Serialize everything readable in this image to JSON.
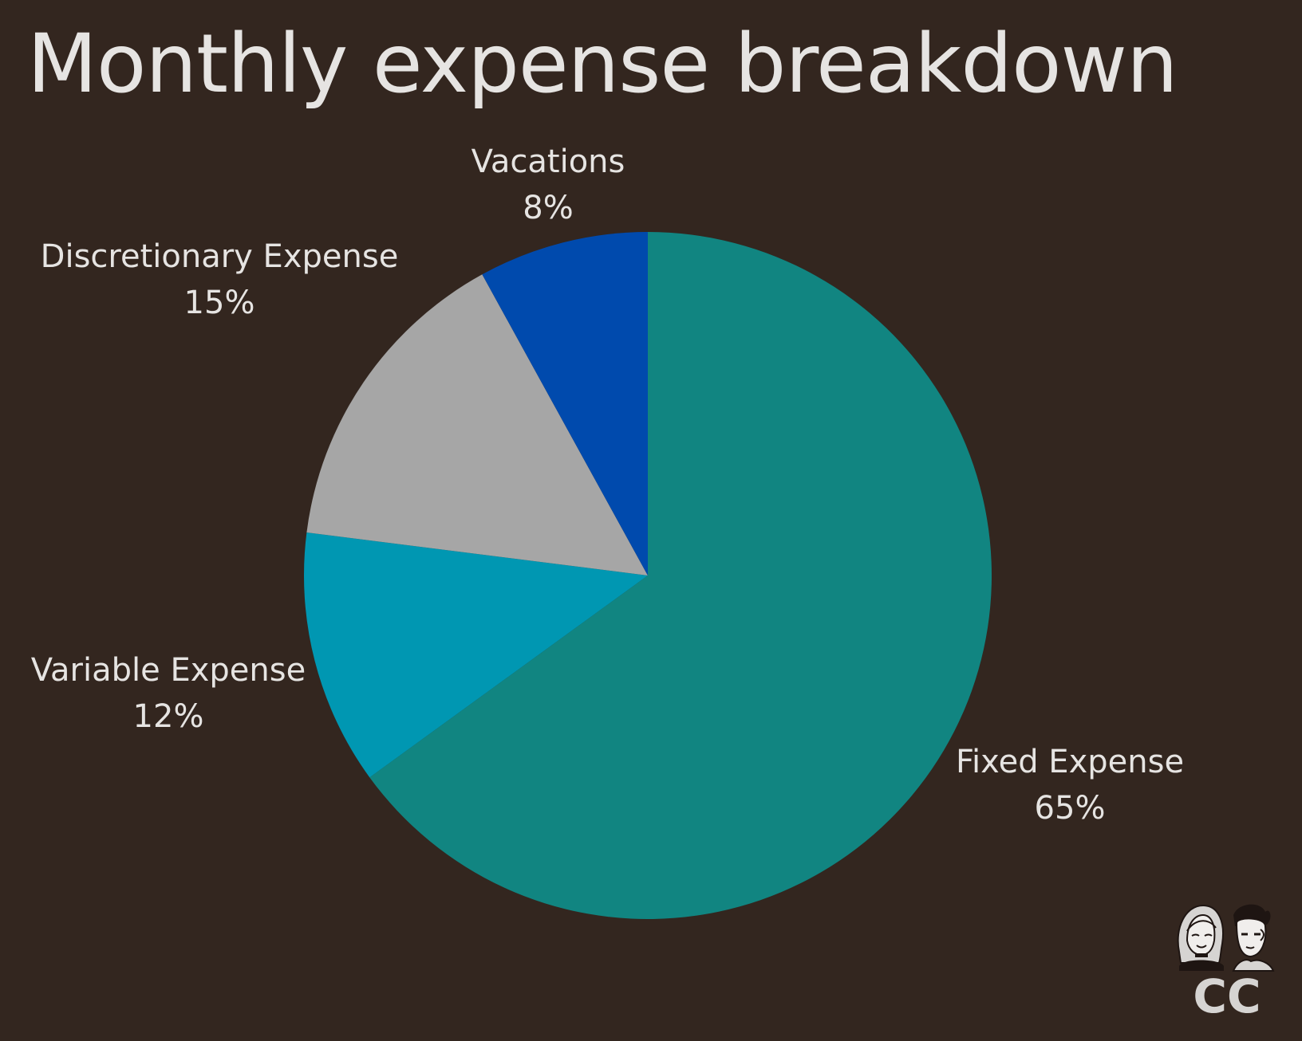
{
  "chart_data": {
    "type": "pie",
    "title": "Monthly expense breakdown",
    "start_angle_deg": 0,
    "direction": "clockwise",
    "slices": [
      {
        "name": "Fixed Expense",
        "value": 65,
        "value_label": "65%",
        "color": "#118581"
      },
      {
        "name": "Variable Expense",
        "value": 12,
        "value_label": "12%",
        "color": "#0097b2"
      },
      {
        "name": "Discretionary Expense",
        "value": 15,
        "value_label": "15%",
        "color": "#a6a6a6"
      },
      {
        "name": "Vacations",
        "value": 8,
        "value_label": "8%",
        "color": "#004aad"
      }
    ],
    "legend": "none"
  },
  "logo": {
    "text": "CC",
    "icon": "two-faces-logo-icon"
  },
  "colors": {
    "background": "#33261f",
    "text": "#e6e4e2"
  }
}
